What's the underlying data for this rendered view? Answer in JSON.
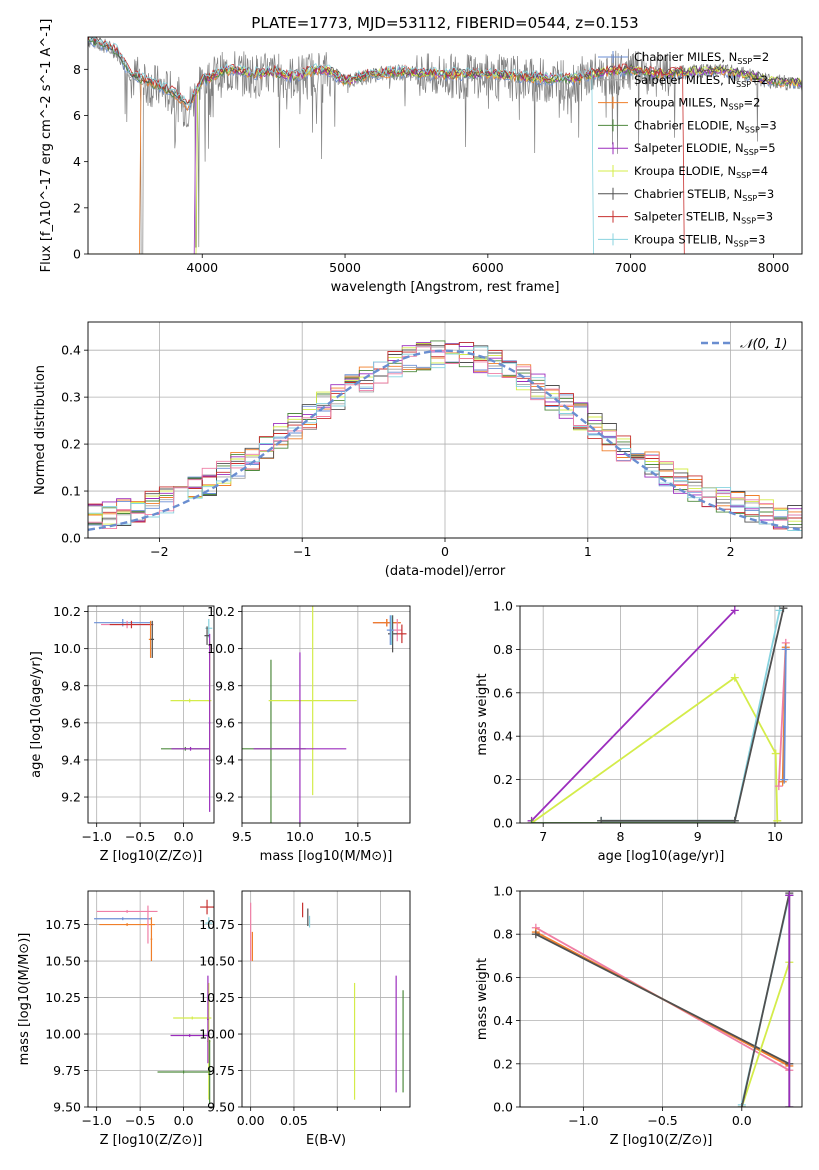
{
  "figure": {
    "title": "PLATE=1773, MJD=53112, FIBERID=0544, z=0.153"
  },
  "colors": {
    "chabrier_miles": "#6b8fd6",
    "salpeter_miles": "#a5a5a5",
    "kroupa_miles": "#f07f2a",
    "chabrier_elodie": "#4f8a3f",
    "salpeter_elodie": "#9b2dbd",
    "kroupa_elodie": "#d4ec4a",
    "chabrier_stelib": "#505050",
    "salpeter_stelib": "#c7302f",
    "kroupa_stelib": "#88d3df",
    "gaussian": "#6a8ed0",
    "data_spectrum": "#808080",
    "pink": "#ef7fa6"
  },
  "chart_data": [
    {
      "id": "spectrum",
      "type": "line",
      "xlabel": "wavelength [Angstrom, rest frame]",
      "ylabel": "Flux [f_λ10^-17 erg cm^-2 s^-1 A^-1]",
      "xlim": [
        3200,
        8200
      ],
      "ylim": [
        0,
        9.4
      ],
      "xticks": [
        4000,
        5000,
        6000,
        7000,
        8000
      ],
      "yticks": [
        0,
        2,
        4,
        6,
        8
      ],
      "grid": false,
      "legend_position": "right",
      "legend": [
        {
          "key": "chabrier_miles",
          "label": "Chabrier MILES, N",
          "sub": "SSP",
          "suffix": "=2"
        },
        {
          "key": "salpeter_miles",
          "label": "Salpeter MILES, N",
          "sub": "SSP",
          "suffix": "=2"
        },
        {
          "key": "kroupa_miles",
          "label": "Kroupa MILES, N",
          "sub": "SSP",
          "suffix": "=2"
        },
        {
          "key": "chabrier_elodie",
          "label": "Chabrier ELODIE, N",
          "sub": "SSP",
          "suffix": "=3"
        },
        {
          "key": "salpeter_elodie",
          "label": "Salpeter ELODIE, N",
          "sub": "SSP",
          "suffix": "=5"
        },
        {
          "key": "kroupa_elodie",
          "label": "Kroupa ELODIE, N",
          "sub": "SSP",
          "suffix": "=4"
        },
        {
          "key": "chabrier_stelib",
          "label": "Chabrier STELIB, N",
          "sub": "SSP",
          "suffix": "=3"
        },
        {
          "key": "salpeter_stelib",
          "label": "Salpeter STELIB, N",
          "sub": "SSP",
          "suffix": "=3"
        },
        {
          "key": "kroupa_stelib",
          "label": "Kroupa STELIB, N",
          "sub": "SSP",
          "suffix": "=3"
        }
      ],
      "model_continuum": {
        "x": [
          3200,
          3300,
          3400,
          3500,
          3600,
          3700,
          3800,
          3900,
          4000,
          4100,
          4200,
          4300,
          4400,
          4500,
          4600,
          4700,
          4800,
          4900,
          5000,
          5200,
          5400,
          5600,
          5800,
          6000,
          6200,
          6400,
          6600,
          6800,
          7000,
          7200,
          7400,
          7600,
          7800,
          8000,
          8200
        ],
        "y": [
          9.3,
          9.1,
          8.8,
          7.8,
          7.5,
          7.3,
          7.0,
          6.4,
          7.5,
          7.8,
          8.0,
          7.9,
          7.8,
          7.9,
          7.7,
          7.8,
          8.0,
          7.9,
          7.5,
          7.8,
          7.9,
          7.8,
          7.8,
          7.8,
          7.7,
          7.6,
          7.6,
          7.9,
          8.0,
          7.8,
          7.9,
          8.0,
          7.8,
          7.5,
          7.4
        ]
      },
      "model_dropouts": [
        {
          "key": "kroupa_miles",
          "from": 3200,
          "to": 3560
        },
        {
          "key": "salpeter_elodie",
          "from": 3200,
          "to": 3950
        },
        {
          "key": "kroupa_elodie",
          "from": 3200,
          "to": 3960
        },
        {
          "key": "kroupa_stelib",
          "from": 6740,
          "to": 8200
        },
        {
          "key": "salpeter_stelib",
          "from": 7370,
          "to": 8200
        }
      ]
    },
    {
      "id": "residuals",
      "type": "histogram",
      "xlabel": "(data-model)/error",
      "ylabel": "Normed distribution",
      "xlim": [
        -2.5,
        2.5
      ],
      "ylim": [
        0,
        0.46
      ],
      "xticks": [
        -2,
        -1,
        0,
        1,
        2
      ],
      "yticks": [
        0.0,
        0.1,
        0.2,
        0.3,
        0.4
      ],
      "grid": true,
      "legend_position": "top-right",
      "legend_label": "𝒩(0, 1)",
      "bin_width": 0.1
    },
    {
      "id": "age_vs_Z",
      "type": "errorbar",
      "xlabel": "Z [log10(Z/Z⊙)]",
      "ylabel": "age  [log10(age/yr)]",
      "xlim": [
        -1.1,
        0.35
      ],
      "ylim": [
        9.06,
        10.23
      ],
      "xticks": [
        -1.0,
        -0.5,
        0.0
      ],
      "yticks": [
        9.2,
        9.4,
        9.6,
        9.8,
        10.0,
        10.2
      ],
      "grid": true,
      "points": [
        {
          "key": "chabrier_miles",
          "x": -0.7,
          "xerr": 0.33,
          "y": 10.14,
          "yerr": 0.02
        },
        {
          "key": "pink",
          "x": -0.65,
          "xerr": 0.3,
          "y": 10.13,
          "yerr": 0.02
        },
        {
          "key": "salpeter_stelib",
          "x": -0.6,
          "xerr": 0.25,
          "y": 10.13,
          "yerr": 0.02
        },
        {
          "key": "kroupa_miles",
          "x": -0.38,
          "xerr": 0.02,
          "y": 10.05,
          "yerr": 0.1
        },
        {
          "key": "chabrier_stelib",
          "x": -0.36,
          "xerr": 0.02,
          "y": 10.05,
          "yerr": 0.1
        },
        {
          "key": "kroupa_stelib",
          "x": 0.29,
          "xerr": 0.04,
          "y": 10.11,
          "yerr": 0.05
        },
        {
          "key": "chabrier_stelib",
          "x": 0.27,
          "xerr": 0.03,
          "y": 10.07,
          "yerr": 0.05
        },
        {
          "key": "kroupa_elodie",
          "x": 0.3,
          "xerr": 0.02,
          "y": 9.72,
          "yerr": 0.32
        },
        {
          "key": "kroupa_elodie",
          "x": 0.07,
          "xerr": 0.22,
          "y": 9.72,
          "yerr": 0.01
        },
        {
          "key": "chabrier_elodie",
          "x": 0.02,
          "xerr": 0.28,
          "y": 9.46,
          "yerr": 0.01
        },
        {
          "key": "salpeter_elodie",
          "x": 0.08,
          "xerr": 0.22,
          "y": 9.46,
          "yerr": 0.01
        },
        {
          "key": "salpeter_elodie",
          "x": 0.3,
          "xerr": 0.01,
          "y": 9.6,
          "yerr": 0.48
        }
      ]
    },
    {
      "id": "age_vs_mass",
      "type": "errorbar",
      "xlabel": "mass [log10(M/M⊙)]",
      "ylabel": "",
      "xlim": [
        9.5,
        10.95
      ],
      "ylim": [
        9.06,
        10.23
      ],
      "xticks": [
        9.5,
        10.0,
        10.5
      ],
      "yticks": [
        9.2,
        9.4,
        9.6,
        9.8,
        10.0,
        10.2
      ],
      "grid": true,
      "points": [
        {
          "key": "chabrier_elodie",
          "x": 9.75,
          "xerr": 0.3,
          "y": 9.46,
          "yerr": 0.48
        },
        {
          "key": "kroupa_elodie",
          "x": 10.11,
          "xerr": 0.38,
          "y": 9.72,
          "yerr": 0.51
        },
        {
          "key": "salpeter_elodie",
          "x": 10.0,
          "xerr": 0.4,
          "y": 9.46,
          "yerr": 0.52
        },
        {
          "key": "salpeter_stelib",
          "x": 10.75,
          "xerr": 0.12,
          "y": 10.14,
          "yerr": 0.02
        },
        {
          "key": "kroupa_miles",
          "x": 10.75,
          "xerr": 0.12,
          "y": 10.14,
          "yerr": 0.02
        },
        {
          "key": "pink",
          "x": 10.84,
          "xerr": 0.04,
          "y": 10.1,
          "yerr": 0.06
        },
        {
          "key": "chabrier_stelib",
          "x": 10.8,
          "xerr": 0.04,
          "y": 10.08,
          "yerr": 0.1
        },
        {
          "key": "kroupa_stelib",
          "x": 10.79,
          "xerr": 0.02,
          "y": 10.1,
          "yerr": 0.08
        },
        {
          "key": "salpeter_stelib",
          "x": 10.88,
          "xerr": 0.04,
          "y": 10.08,
          "yerr": 0.05
        },
        {
          "key": "chabrier_miles",
          "x": 10.78,
          "xerr": 0.03,
          "y": 10.1,
          "yerr": 0.08
        }
      ]
    },
    {
      "id": "weight_vs_age",
      "type": "line",
      "xlabel": "age  [log10(age/yr)]",
      "ylabel": "mass weight",
      "xlim": [
        6.7,
        10.35
      ],
      "ylim": [
        0,
        1.0
      ],
      "xticks": [
        7,
        8,
        9,
        10
      ],
      "yticks": [
        0.0,
        0.2,
        0.4,
        0.6,
        0.8,
        1.0
      ],
      "grid": true,
      "series": [
        {
          "key": "salpeter_elodie",
          "x": [
            6.85,
            9.48
          ],
          "y": [
            0.01,
            0.98
          ]
        },
        {
          "key": "kroupa_elodie",
          "x": [
            6.85,
            9.48,
            10.01,
            10.03
          ],
          "y": [
            0.0,
            0.67,
            0.32,
            0.01
          ]
        },
        {
          "key": "chabrier_elodie",
          "x": [
            6.85,
            9.48
          ],
          "y": [
            0.0,
            0.0
          ]
        },
        {
          "key": "kroupa_stelib",
          "x": [
            7.75,
            9.48,
            10.06
          ],
          "y": [
            0.01,
            0.01,
            0.98
          ]
        },
        {
          "key": "chabrier_stelib",
          "x": [
            7.75,
            9.48,
            10.11
          ],
          "y": [
            0.01,
            0.01,
            0.99
          ]
        },
        {
          "key": "pink",
          "x": [
            10.05,
            10.14
          ],
          "y": [
            0.17,
            0.83
          ]
        },
        {
          "key": "kroupa_miles",
          "x": [
            10.1,
            10.14
          ],
          "y": [
            0.19,
            0.81
          ]
        },
        {
          "key": "chabrier_miles",
          "x": [
            10.12,
            10.14
          ],
          "y": [
            0.2,
            0.8
          ]
        }
      ]
    },
    {
      "id": "mass_vs_Z",
      "type": "errorbar",
      "xlabel": "Z [log10(Z/Z⊙)]",
      "ylabel": "mass [log10(M/M⊙)]",
      "xlim": [
        -1.1,
        0.35
      ],
      "ylim": [
        9.5,
        10.98
      ],
      "xticks": [
        -1.0,
        -0.5,
        0.0
      ],
      "yticks": [
        9.5,
        9.75,
        10.0,
        10.25,
        10.5,
        10.75
      ],
      "grid": true,
      "points": [
        {
          "key": "pink",
          "x": -0.65,
          "xerr": 0.35,
          "y": 10.84,
          "yerr": 0.01
        },
        {
          "key": "chabrier_miles",
          "x": -0.7,
          "xerr": 0.33,
          "y": 10.79,
          "yerr": 0.01
        },
        {
          "key": "kroupa_miles",
          "x": -0.65,
          "xerr": 0.32,
          "y": 10.75,
          "yerr": 0.01
        },
        {
          "key": "pink",
          "x": -0.41,
          "xerr": 0.01,
          "y": 10.75,
          "yerr": 0.13
        },
        {
          "key": "kroupa_miles",
          "x": -0.37,
          "xerr": 0.01,
          "y": 10.65,
          "yerr": 0.15
        },
        {
          "key": "salpeter_stelib",
          "x": 0.27,
          "xerr": 0.08,
          "y": 10.87,
          "yerr": 0.05
        },
        {
          "key": "kroupa_stelib",
          "x": 0.29,
          "xerr": 0.04,
          "y": 10.76,
          "yerr": 0.04
        },
        {
          "key": "kroupa_elodie",
          "x": 0.29,
          "xerr": 0.02,
          "y": 9.95,
          "yerr": 0.4
        },
        {
          "key": "kroupa_elodie",
          "x": 0.1,
          "xerr": 0.22,
          "y": 10.11,
          "yerr": 0.01
        },
        {
          "key": "salpeter_elodie",
          "x": 0.07,
          "xerr": 0.22,
          "y": 9.99,
          "yerr": 0.01
        },
        {
          "key": "salpeter_elodie",
          "x": 0.28,
          "xerr": 0.01,
          "y": 10.1,
          "yerr": 0.3
        },
        {
          "key": "chabrier_elodie",
          "x": 0.0,
          "xerr": 0.3,
          "y": 9.74,
          "yerr": 0.01
        },
        {
          "key": "chabrier_elodie",
          "x": 0.3,
          "xerr": 0.01,
          "y": 9.74,
          "yerr": 0.22
        }
      ]
    },
    {
      "id": "mass_vs_ebv",
      "type": "errorbar",
      "xlabel": "E(B-V)",
      "ylabel": "",
      "xlim": [
        -0.005,
        0.092
      ],
      "ylim": [
        9.5,
        10.98
      ],
      "xticks": [
        0.0,
        0.025,
        0.05,
        0.075
      ],
      "xticklabels": [
        "0.00",
        "0.05"
      ],
      "yticks": [
        9.5,
        9.75,
        10.0,
        10.25,
        10.5,
        10.75
      ],
      "grid": true,
      "points": [
        {
          "key": "pink",
          "x": 0.0,
          "xerr": 0.0,
          "y": 10.7,
          "yerr": 0.2
        },
        {
          "key": "kroupa_miles",
          "x": 0.001,
          "xerr": 0.0,
          "y": 10.6,
          "yerr": 0.1
        },
        {
          "key": "salpeter_stelib",
          "x": 0.03,
          "xerr": 0.0,
          "y": 10.85,
          "yerr": 0.05
        },
        {
          "key": "chabrier_stelib",
          "x": 0.033,
          "xerr": 0.0,
          "y": 10.8,
          "yerr": 0.06
        },
        {
          "key": "kroupa_stelib",
          "x": 0.034,
          "xerr": 0.0,
          "y": 10.77,
          "yerr": 0.04
        },
        {
          "key": "kroupa_elodie",
          "x": 0.06,
          "xerr": 0.0,
          "y": 9.95,
          "yerr": 0.4
        },
        {
          "key": "salpeter_elodie",
          "x": 0.084,
          "xerr": 0.0,
          "y": 10.0,
          "yerr": 0.4
        },
        {
          "key": "chabrier_elodie",
          "x": 0.088,
          "xerr": 0.0,
          "y": 9.95,
          "yerr": 0.35
        }
      ]
    },
    {
      "id": "weight_vs_Z",
      "type": "line",
      "xlabel": "Z [log10(Z/Z⊙)]",
      "ylabel": "mass weight",
      "xlim": [
        -1.4,
        0.38
      ],
      "ylim": [
        0,
        1.0
      ],
      "xticks": [
        -1.0,
        -0.5,
        0.0
      ],
      "yticks": [
        0.0,
        0.2,
        0.4,
        0.6,
        0.8,
        1.0
      ],
      "grid": true,
      "series": [
        {
          "key": "pink",
          "x": [
            -1.3,
            0.3
          ],
          "y": [
            0.83,
            0.17
          ]
        },
        {
          "key": "kroupa_miles",
          "x": [
            -1.3,
            0.3
          ],
          "y": [
            0.81,
            0.19
          ]
        },
        {
          "key": "chabrier_stelib",
          "x": [
            -1.3,
            0.3
          ],
          "y": [
            0.8,
            0.2
          ]
        },
        {
          "key": "kroupa_elodie",
          "x": [
            0.0,
            0.3
          ],
          "y": [
            0.0,
            0.67
          ]
        },
        {
          "key": "kroupa_stelib",
          "x": [
            0.0,
            0.3
          ],
          "y": [
            0.01,
            0.98
          ]
        },
        {
          "key": "chabrier_stelib",
          "x": [
            0.0,
            0.3
          ],
          "y": [
            0.0,
            0.99
          ]
        },
        {
          "key": "chabrier_elodie",
          "x": [
            0.3,
            0.3
          ],
          "y": [
            0.0,
            0.98
          ]
        },
        {
          "key": "salpeter_elodie",
          "x": [
            0.3,
            0.3
          ],
          "y": [
            0.0,
            0.98
          ]
        }
      ]
    }
  ]
}
